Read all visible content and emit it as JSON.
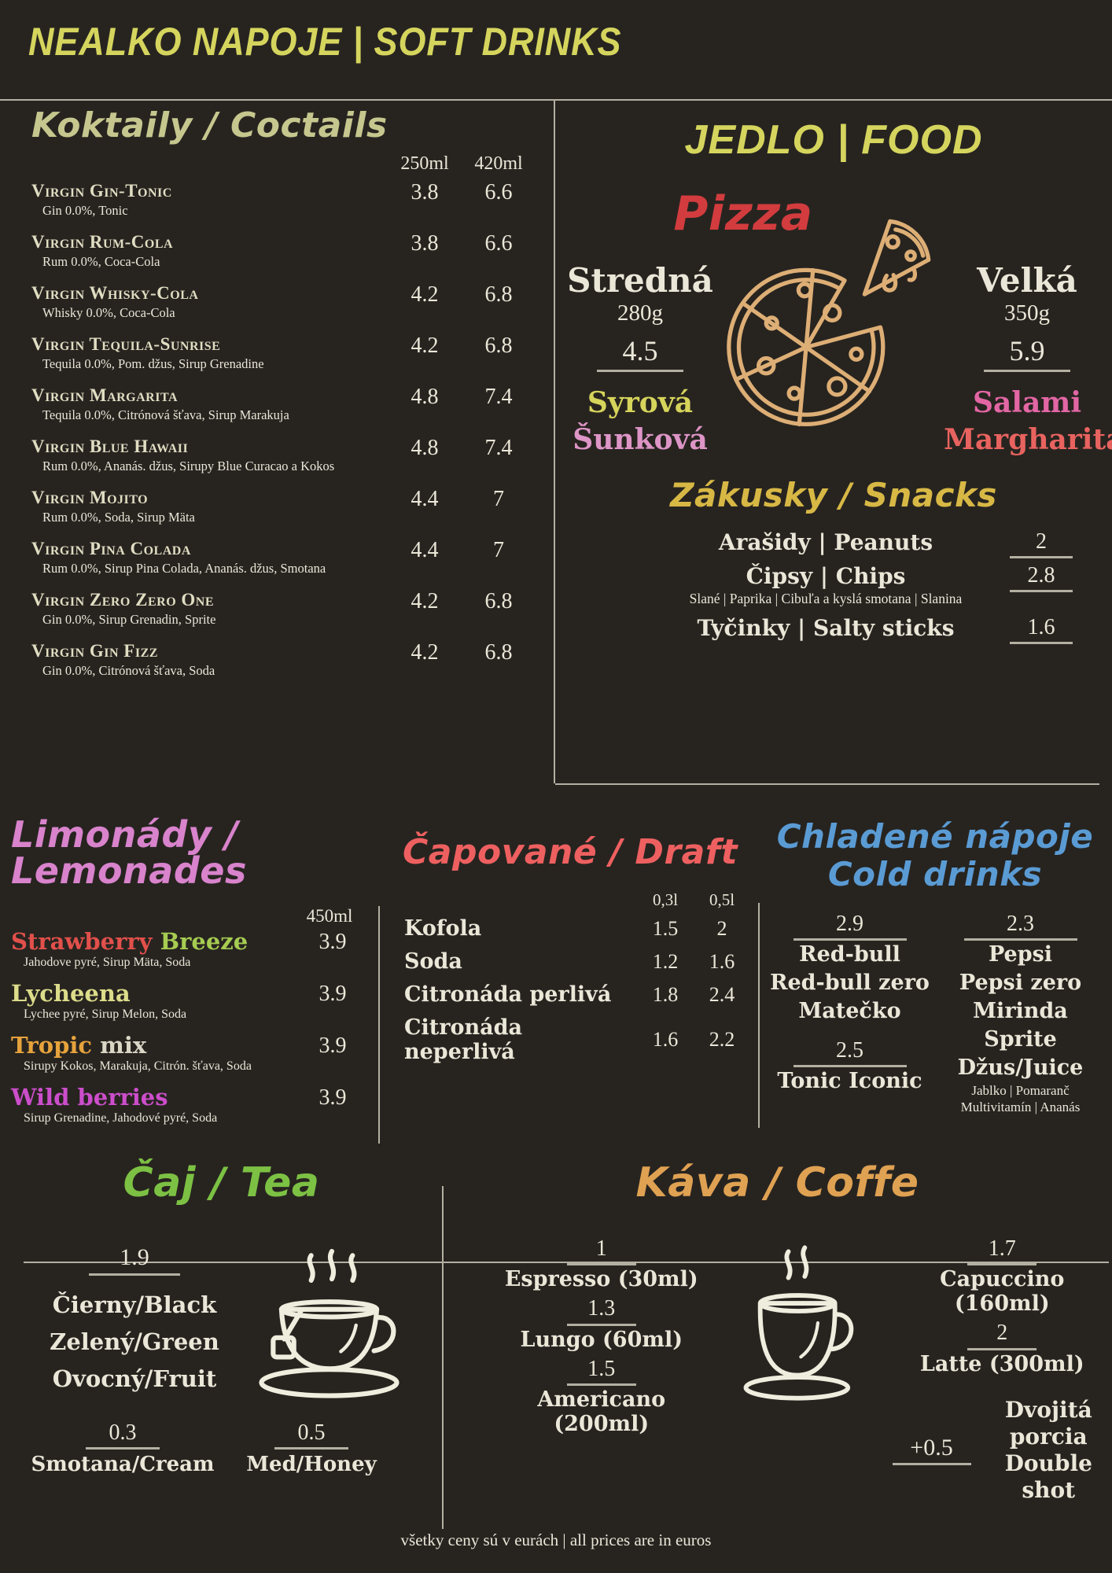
{
  "palette": {
    "background": "#272420",
    "cream_text": "#eae7d8",
    "divider_line": "#b3b0a2",
    "title_yellow": "#d5d55e",
    "cocktails_olive": "#c6c78e",
    "pizza_red": "#d23c3e",
    "pizza_icon_tan": "#ddae75",
    "snacks_gold": "#d8b845",
    "lemonades_pink": "#d883cc",
    "draft_coral": "#ee6060",
    "cold_drinks_blue": "#5a9bd4",
    "tea_green": "#7cc143",
    "coffee_orange": "#dfa152"
  },
  "header": {
    "title": "NEALKO NAPOJE | SOFT DRINKS"
  },
  "cocktails": {
    "heading": "Koktaily / Coctails",
    "size_headers": [
      "250ml",
      "420ml"
    ],
    "items": [
      {
        "name": "Virgin Gin-Tonic",
        "desc": "Gin 0.0%, Tonic",
        "p1": "3.8",
        "p2": "6.6"
      },
      {
        "name": "Virgin Rum-Cola",
        "desc": "Rum 0.0%, Coca-Cola",
        "p1": "3.8",
        "p2": "6.6"
      },
      {
        "name": "Virgin Whisky-Cola",
        "desc": "Whisky 0.0%, Coca-Cola",
        "p1": "4.2",
        "p2": "6.8"
      },
      {
        "name": "Virgin Tequila-Sunrise",
        "desc": "Tequila 0.0%, Pom. džus, Sirup Grenadine",
        "p1": "4.2",
        "p2": "6.8"
      },
      {
        "name": "Virgin Margarita",
        "desc": "Tequila 0.0%, Citrónová šťava, Sirup Marakuja",
        "p1": "4.8",
        "p2": "7.4"
      },
      {
        "name": "Virgin Blue Hawaii",
        "desc": "Rum 0.0%, Ananás. džus, Sirupy Blue Curacao a Kokos",
        "p1": "4.8",
        "p2": "7.4"
      },
      {
        "name": "Virgin Mojito",
        "desc": "Rum 0.0%, Soda, Sirup Mäta",
        "p1": "4.4",
        "p2": "7"
      },
      {
        "name": "Virgin Pina Colada",
        "desc": "Rum 0.0%, Sirup Pina Colada, Ananás. džus, Smotana",
        "p1": "4.4",
        "p2": "7"
      },
      {
        "name": "Virgin Zero Zero One",
        "desc": "Gin 0.0%, Sirup Grenadin, Sprite",
        "p1": "4.2",
        "p2": "6.8"
      },
      {
        "name": "Virgin Gin Fizz",
        "desc": "Gin 0.0%, Citrónová šťava, Soda",
        "p1": "4.2",
        "p2": "6.8"
      }
    ]
  },
  "food": {
    "heading": "JEDLO | FOOD",
    "pizza": {
      "heading": "Pizza",
      "sizes": [
        {
          "label": "Stredná",
          "weight": "280g",
          "price": "4.5",
          "flavors": [
            {
              "text": "Syrová",
              "color": "#d6d45b"
            },
            {
              "text": "Šunková",
              "color": "#dd95c6"
            }
          ]
        },
        {
          "label": "Velká",
          "weight": "350g",
          "price": "5.9",
          "flavors": [
            {
              "text": "Salami",
              "color": "#e266a4"
            },
            {
              "text": "Margharita",
              "color": "#e8635f"
            }
          ]
        }
      ]
    },
    "snacks": {
      "heading": "Zákusky / Snacks",
      "items": [
        {
          "name": "Arašidy | Peanuts",
          "price": "2",
          "note": ""
        },
        {
          "name": "Čipsy | Chips",
          "price": "2.8",
          "note": "Slané | Paprika | Cibuľa a kyslá smotana | Slanina"
        },
        {
          "name": "Tyčinky | Salty sticks",
          "price": "1.6",
          "note": ""
        }
      ]
    }
  },
  "lemonades": {
    "heading": "Limonády / Lemonades",
    "size_header": "450ml",
    "items": [
      {
        "parts": [
          {
            "text": "Strawberry ",
            "color": "#e2504b"
          },
          {
            "text": "Breeze",
            "color": "#a6cc51"
          }
        ],
        "desc": "Jahodove pyré, Sirup Mäta, Soda",
        "price": "3.9"
      },
      {
        "parts": [
          {
            "text": "Lycheena",
            "color": "#dcdc8a"
          }
        ],
        "desc": "Lychee pyré, Sirup Melon, Soda",
        "price": "3.9"
      },
      {
        "parts": [
          {
            "text": "Tropic ",
            "color": "#e6a33c"
          },
          {
            "text": "mix",
            "color": "#d9d6c6"
          }
        ],
        "desc": "Sirupy Kokos, Marakuja, Citrón. šťava, Soda",
        "price": "3.9"
      },
      {
        "parts": [
          {
            "text": "Wild berries",
            "color": "#cc4ecb"
          }
        ],
        "desc": "Sirup Grenadine, Jahodové pyré, Soda",
        "price": "3.9"
      }
    ]
  },
  "draft": {
    "heading": "Čapované / Draft",
    "size_headers": [
      "0,3l",
      "0,5l"
    ],
    "items": [
      {
        "name": "Kofola",
        "p1": "1.5",
        "p2": "2"
      },
      {
        "name": "Soda",
        "p1": "1.2",
        "p2": "1.6"
      },
      {
        "name": "Citronáda perlivá",
        "p1": "1.8",
        "p2": "2.4"
      },
      {
        "name": "Citronáda neperlivá",
        "p1": "1.6",
        "p2": "2.2"
      }
    ]
  },
  "cold_drinks": {
    "heading_line1": "Chladené nápoje",
    "heading_line2": "Cold drinks",
    "columns": [
      {
        "groups": [
          {
            "price": "2.9",
            "items": [
              "Red-bull",
              "Red-bull zero",
              "Matečko"
            ],
            "note_lines": []
          },
          {
            "price": "2.5",
            "items": [
              "Tonic Iconic"
            ],
            "note_lines": []
          }
        ]
      },
      {
        "groups": [
          {
            "price": "2.3",
            "items": [
              "Pepsi",
              "Pepsi zero",
              "Mirinda",
              "Sprite",
              "Džus/Juice"
            ],
            "note_lines": [
              "Jablko | Pomaranč",
              "Multivitamín | Ananás"
            ]
          }
        ]
      }
    ]
  },
  "tea": {
    "heading": "Čaj / Tea",
    "price": "1.9",
    "varieties": [
      "Čierny/Black",
      "Zelený/Green",
      "Ovocný/Fruit"
    ],
    "extras": [
      {
        "price": "0.3",
        "label": "Smotana/Cream"
      },
      {
        "price": "0.5",
        "label": "Med/Honey"
      }
    ]
  },
  "coffee": {
    "heading": "Káva / Coffe",
    "left_items": [
      {
        "price": "1",
        "label": "Espresso (30ml)"
      },
      {
        "price": "1.3",
        "label": "Lungo (60ml)"
      },
      {
        "price": "1.5",
        "label": "Americano (200ml)"
      }
    ],
    "right_items": [
      {
        "price": "1.7",
        "label": "Capuccino (160ml)"
      },
      {
        "price": "2",
        "label": "Latte (300ml)"
      }
    ],
    "extra": {
      "price": "+0.5",
      "line1": "Dvojitá porcia",
      "line2": "Double shot"
    }
  },
  "footer": {
    "note": "všetky ceny sú v eurách | all prices are in euros"
  }
}
